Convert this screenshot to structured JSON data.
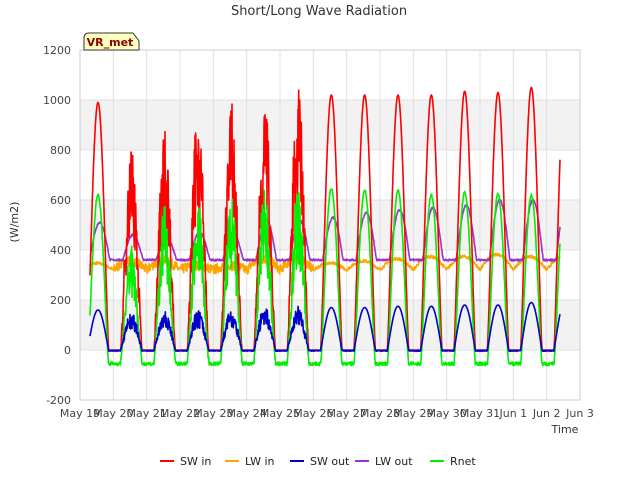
{
  "chart_data": {
    "type": "line",
    "title": "Short/Long Wave Radiation",
    "xlabel": "Time",
    "ylabel": "(W/m2)",
    "badge": "VR_met",
    "xlim": [
      0,
      15
    ],
    "ylim": [
      -200,
      1200
    ],
    "y_ticks": [
      -200,
      0,
      200,
      400,
      600,
      800,
      1000,
      1200
    ],
    "x_ticks": [
      {
        "pos": 0,
        "label": "May 19"
      },
      {
        "pos": 1,
        "label": "May 20"
      },
      {
        "pos": 2,
        "label": "May 21"
      },
      {
        "pos": 3,
        "label": "May 22"
      },
      {
        "pos": 4,
        "label": "May 23"
      },
      {
        "pos": 5,
        "label": "May 24"
      },
      {
        "pos": 6,
        "label": "May 25"
      },
      {
        "pos": 7,
        "label": "May 26"
      },
      {
        "pos": 8,
        "label": "May 27"
      },
      {
        "pos": 9,
        "label": "May 28"
      },
      {
        "pos": 10,
        "label": "May 29"
      },
      {
        "pos": 11,
        "label": "May 30"
      },
      {
        "pos": 12,
        "label": "May 31"
      },
      {
        "pos": 13,
        "label": "Jun 1"
      },
      {
        "pos": 14,
        "label": "Jun 2"
      },
      {
        "pos": 15,
        "label": "Jun 3"
      }
    ],
    "grid": true,
    "legend_position": "bottom",
    "days": [
      "May 19",
      "May 20",
      "May 21",
      "May 22",
      "May 23",
      "May 24",
      "May 25",
      "May 26",
      "May 27",
      "May 28",
      "May 29",
      "May 30",
      "May 31",
      "Jun 1"
    ],
    "data_start_day": 0.3,
    "data_end_day": 14.4,
    "series": [
      {
        "name": "SW in",
        "color": "#ff0000",
        "daily_peak": [
          990,
          830,
          890,
          980,
          990,
          1020,
          1070,
          1020,
          1020,
          1020,
          1020,
          1035,
          1030,
          1050
        ],
        "night": 0
      },
      {
        "name": "LW in",
        "color": "#ffa500",
        "daily_peak": [
          350,
          360,
          360,
          340,
          340,
          370,
          370,
          350,
          360,
          370,
          380,
          380,
          390,
          380
        ],
        "night": 320
      },
      {
        "name": "SW out",
        "color": "#0000cc",
        "daily_peak": [
          160,
          150,
          160,
          160,
          165,
          175,
          175,
          170,
          170,
          175,
          175,
          180,
          180,
          190
        ],
        "night": 0
      },
      {
        "name": "LW out",
        "color": "#9933cc",
        "daily_peak": [
          510,
          460,
          450,
          470,
          470,
          520,
          520,
          530,
          550,
          560,
          570,
          580,
          600,
          600
        ],
        "night": 380
      },
      {
        "name": "Rnet",
        "color": "#00ee00",
        "daily_peak": [
          620,
          430,
          580,
          620,
          620,
          660,
          670,
          645,
          640,
          640,
          620,
          630,
          625,
          620
        ],
        "night": -55
      }
    ]
  }
}
